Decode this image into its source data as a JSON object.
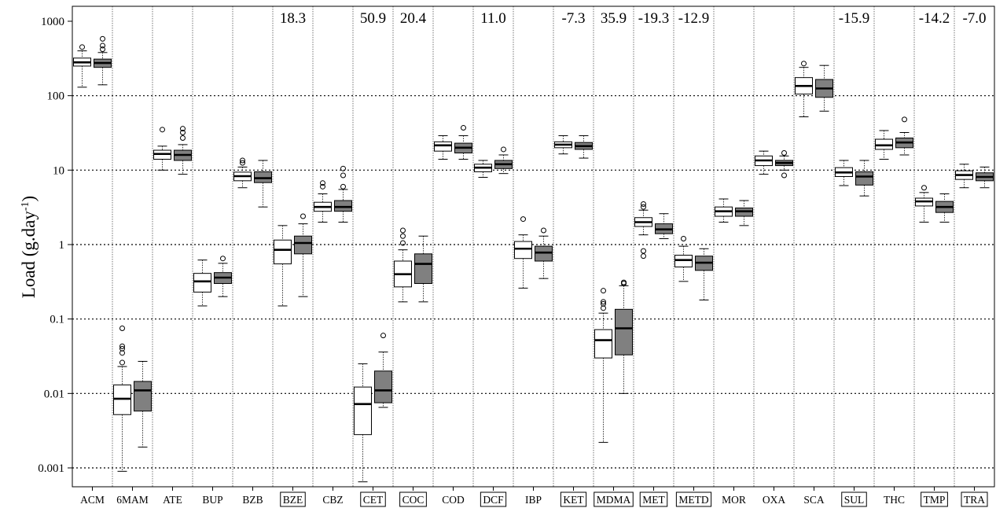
{
  "chart_data": {
    "type": "box",
    "ylabel": {
      "main": "Load (g.day",
      "sup": "-1",
      "close": ")"
    },
    "yscale": "log",
    "ylim": [
      0.0007,
      1200
    ],
    "yticks": [
      {
        "value": 0.001,
        "label": "0.001"
      },
      {
        "value": 0.01,
        "label": "0.01"
      },
      {
        "value": 0.1,
        "label": "0.1"
      },
      {
        "value": 1,
        "label": "1"
      },
      {
        "value": 10,
        "label": "10"
      },
      {
        "value": 100,
        "label": "100"
      },
      {
        "value": 1000,
        "label": "1000"
      }
    ],
    "colors": {
      "series1": "#ffffff",
      "series2": "#808080"
    },
    "categories": [
      {
        "name": "ACM",
        "boxed": false,
        "change": null,
        "boxes": [
          {
            "lo": 130,
            "q1": 250,
            "med": 280,
            "q3": 320,
            "hi": 400,
            "out": [
              450
            ]
          },
          {
            "lo": 140,
            "q1": 240,
            "med": 275,
            "q3": 310,
            "hi": 380,
            "out": [
              420,
              470,
              580
            ]
          }
        ]
      },
      {
        "name": "6MAM",
        "boxed": false,
        "change": null,
        "boxes": [
          {
            "lo": 0.0009,
            "q1": 0.0052,
            "med": 0.0085,
            "q3": 0.013,
            "hi": 0.023,
            "out": [
              0.026,
              0.035,
              0.04,
              0.043,
              0.075
            ]
          },
          {
            "lo": 0.0019,
            "q1": 0.0058,
            "med": 0.011,
            "q3": 0.0145,
            "hi": 0.027,
            "out": []
          }
        ]
      },
      {
        "name": "ATE",
        "boxed": false,
        "change": null,
        "boxes": [
          {
            "lo": 10,
            "q1": 14,
            "med": 16.5,
            "q3": 18.5,
            "hi": 21,
            "out": [
              35
            ]
          },
          {
            "lo": 8.8,
            "q1": 13.5,
            "med": 16,
            "q3": 18.5,
            "hi": 22,
            "out": [
              27,
              32,
              36
            ]
          }
        ]
      },
      {
        "name": "BUP",
        "boxed": false,
        "change": null,
        "boxes": [
          {
            "lo": 0.15,
            "q1": 0.23,
            "med": 0.32,
            "q3": 0.41,
            "hi": 0.62,
            "out": []
          },
          {
            "lo": 0.2,
            "q1": 0.3,
            "med": 0.36,
            "q3": 0.42,
            "hi": 0.56,
            "out": [
              0.65
            ]
          }
        ]
      },
      {
        "name": "BZB",
        "boxed": false,
        "change": null,
        "boxes": [
          {
            "lo": 5.8,
            "q1": 7.2,
            "med": 8.3,
            "q3": 9.4,
            "hi": 11,
            "out": [
              12.5,
              13.5
            ]
          },
          {
            "lo": 3.2,
            "q1": 6.8,
            "med": 7.8,
            "q3": 9.5,
            "hi": 13.5,
            "out": []
          }
        ]
      },
      {
        "name": "BZE",
        "boxed": true,
        "change": "18.3",
        "boxes": [
          {
            "lo": 0.15,
            "q1": 0.55,
            "med": 0.85,
            "q3": 1.15,
            "hi": 1.8,
            "out": []
          },
          {
            "lo": 0.2,
            "q1": 0.75,
            "med": 1.05,
            "q3": 1.3,
            "hi": 1.9,
            "out": [
              2.4
            ]
          }
        ]
      },
      {
        "name": "CBZ",
        "boxed": false,
        "change": null,
        "boxes": [
          {
            "lo": 2.0,
            "q1": 2.8,
            "med": 3.2,
            "q3": 3.7,
            "hi": 4.8,
            "out": [
              6.0,
              6.7
            ]
          },
          {
            "lo": 2.0,
            "q1": 2.8,
            "med": 3.2,
            "q3": 3.9,
            "hi": 5.5,
            "out": [
              6,
              8.5,
              10.5
            ]
          }
        ]
      },
      {
        "name": "CET",
        "boxed": true,
        "change": "50.9",
        "boxes": [
          {
            "lo": 0.00065,
            "q1": 0.0028,
            "med": 0.0072,
            "q3": 0.0122,
            "hi": 0.025,
            "out": []
          },
          {
            "lo": 0.0065,
            "q1": 0.0075,
            "med": 0.011,
            "q3": 0.02,
            "hi": 0.036,
            "out": [
              0.06
            ]
          }
        ]
      },
      {
        "name": "COC",
        "boxed": true,
        "change": "20.4",
        "boxes": [
          {
            "lo": 0.17,
            "q1": 0.27,
            "med": 0.4,
            "q3": 0.6,
            "hi": 0.85,
            "out": [
              1.05,
              1.3,
              1.55
            ]
          },
          {
            "lo": 0.17,
            "q1": 0.3,
            "med": 0.55,
            "q3": 0.75,
            "hi": 1.3,
            "out": []
          }
        ]
      },
      {
        "name": "COD",
        "boxed": false,
        "change": null,
        "boxes": [
          {
            "lo": 14,
            "q1": 18,
            "med": 21.5,
            "q3": 24,
            "hi": 29,
            "out": []
          },
          {
            "lo": 14,
            "q1": 17,
            "med": 20,
            "q3": 23,
            "hi": 29,
            "out": [
              37
            ]
          }
        ]
      },
      {
        "name": "DCF",
        "boxed": true,
        "change": "11.0",
        "boxes": [
          {
            "lo": 8.0,
            "q1": 9.5,
            "med": 10.8,
            "q3": 12,
            "hi": 13.5,
            "out": []
          },
          {
            "lo": 9.0,
            "q1": 10.5,
            "med": 12,
            "q3": 13.5,
            "hi": 16,
            "out": [
              19
            ]
          }
        ]
      },
      {
        "name": "IBP",
        "boxed": false,
        "change": null,
        "boxes": [
          {
            "lo": 0.26,
            "q1": 0.65,
            "med": 0.88,
            "q3": 1.1,
            "hi": 1.35,
            "out": [
              2.2
            ]
          },
          {
            "lo": 0.35,
            "q1": 0.6,
            "med": 0.78,
            "q3": 0.95,
            "hi": 1.3,
            "out": [
              1.55
            ]
          }
        ]
      },
      {
        "name": "KET",
        "boxed": true,
        "change": "-7.3",
        "boxes": [
          {
            "lo": 16.5,
            "q1": 20,
            "med": 22,
            "q3": 24,
            "hi": 29,
            "out": []
          },
          {
            "lo": 14.5,
            "q1": 19,
            "med": 21,
            "q3": 23.5,
            "hi": 29,
            "out": []
          }
        ]
      },
      {
        "name": "MDMA",
        "boxed": true,
        "change": "35.9",
        "boxes": [
          {
            "lo": 0.0022,
            "q1": 0.03,
            "med": 0.052,
            "q3": 0.072,
            "hi": 0.12,
            "out": [
              0.14,
              0.16,
              0.17,
              0.24
            ]
          },
          {
            "lo": 0.01,
            "q1": 0.033,
            "med": 0.075,
            "q3": 0.135,
            "hi": 0.28,
            "out": [
              0.3,
              0.31
            ]
          }
        ]
      },
      {
        "name": "MET",
        "boxed": true,
        "change": "-19.3",
        "boxes": [
          {
            "lo": 1.35,
            "q1": 1.75,
            "med": 2.0,
            "q3": 2.3,
            "hi": 2.9,
            "out": [
              0.7,
              0.82,
              3.2,
              3.5
            ]
          },
          {
            "lo": 1.2,
            "q1": 1.4,
            "med": 1.6,
            "q3": 1.9,
            "hi": 2.6,
            "out": []
          }
        ]
      },
      {
        "name": "METD",
        "boxed": true,
        "change": "-12.9",
        "boxes": [
          {
            "lo": 0.32,
            "q1": 0.5,
            "med": 0.62,
            "q3": 0.72,
            "hi": 0.95,
            "out": [
              1.2
            ]
          },
          {
            "lo": 0.18,
            "q1": 0.45,
            "med": 0.57,
            "q3": 0.7,
            "hi": 0.88,
            "out": []
          }
        ]
      },
      {
        "name": "MOR",
        "boxed": false,
        "change": null,
        "boxes": [
          {
            "lo": 2.0,
            "q1": 2.4,
            "med": 2.8,
            "q3": 3.2,
            "hi": 4.1,
            "out": []
          },
          {
            "lo": 1.8,
            "q1": 2.4,
            "med": 2.8,
            "q3": 3.1,
            "hi": 3.9,
            "out": []
          }
        ]
      },
      {
        "name": "OXA",
        "boxed": false,
        "change": null,
        "boxes": [
          {
            "lo": 8.8,
            "q1": 11.5,
            "med": 13.5,
            "q3": 15.5,
            "hi": 18,
            "out": []
          },
          {
            "lo": 10,
            "q1": 11.5,
            "med": 12.5,
            "q3": 13.5,
            "hi": 15.5,
            "out": [
              8.5,
              17
            ]
          }
        ]
      },
      {
        "name": "SCA",
        "boxed": false,
        "change": null,
        "boxes": [
          {
            "lo": 52,
            "q1": 105,
            "med": 135,
            "q3": 175,
            "hi": 240,
            "out": [
              270
            ]
          },
          {
            "lo": 62,
            "q1": 95,
            "med": 125,
            "q3": 165,
            "hi": 255,
            "out": []
          }
        ]
      },
      {
        "name": "SUL",
        "boxed": true,
        "change": "-15.9",
        "boxes": [
          {
            "lo": 6.2,
            "q1": 8.2,
            "med": 9.3,
            "q3": 10.8,
            "hi": 13.5,
            "out": []
          },
          {
            "lo": 4.5,
            "q1": 6.3,
            "med": 8.2,
            "q3": 9.5,
            "hi": 13.5,
            "out": []
          }
        ]
      },
      {
        "name": "THC",
        "boxed": false,
        "change": null,
        "boxes": [
          {
            "lo": 14,
            "q1": 19,
            "med": 21.5,
            "q3": 26,
            "hi": 34,
            "out": []
          },
          {
            "lo": 16,
            "q1": 20,
            "med": 23.5,
            "q3": 27,
            "hi": 32,
            "out": [
              48
            ]
          }
        ]
      },
      {
        "name": "TMP",
        "boxed": true,
        "change": "-14.2",
        "boxes": [
          {
            "lo": 2.0,
            "q1": 3.3,
            "med": 3.8,
            "q3": 4.2,
            "hi": 5.0,
            "out": [
              5.8
            ]
          },
          {
            "lo": 2.0,
            "q1": 2.7,
            "med": 3.2,
            "q3": 3.8,
            "hi": 4.8,
            "out": []
          }
        ]
      },
      {
        "name": "TRA",
        "boxed": true,
        "change": "-7.0",
        "boxes": [
          {
            "lo": 5.8,
            "q1": 7.5,
            "med": 8.6,
            "q3": 9.8,
            "hi": 12,
            "out": []
          },
          {
            "lo": 5.8,
            "q1": 7.2,
            "med": 8.1,
            "q3": 9.2,
            "hi": 11,
            "out": []
          }
        ]
      }
    ]
  }
}
